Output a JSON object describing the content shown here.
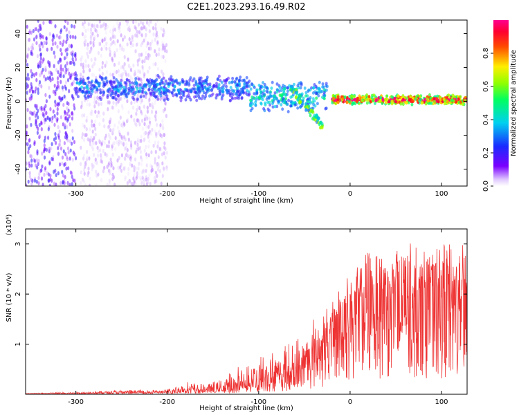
{
  "title": "C2E1.2023.293.16.49.R02",
  "chart_data": [
    {
      "type": "heatmap",
      "xlabel": "Height of straight line (km)",
      "ylabel": "Frequency (Hz)",
      "xlim": [
        -355,
        128
      ],
      "ylim": [
        -50,
        48
      ],
      "x_ticks": [
        -300,
        -200,
        -100,
        0,
        100
      ],
      "y_ticks": [
        -40,
        -20,
        0,
        20,
        40
      ],
      "colorbar": {
        "label": "Normalized spectral amplitude",
        "range": [
          0,
          1
        ],
        "ticks": [
          0.0,
          0.2,
          0.4,
          0.6,
          0.8
        ],
        "colormap": "rainbow (white-violet-blue-cyan-green-yellow-red-magenta)"
      },
      "features": [
        {
          "x_range": [
            -355,
            -300
          ],
          "frequency_range": [
            -50,
            48
          ],
          "amplitude": 0.15,
          "description": "broadband noise"
        },
        {
          "x_range": [
            -295,
            -200
          ],
          "frequency_range": [
            -50,
            48
          ],
          "amplitude": 0.05,
          "description": "faint broadband noise"
        },
        {
          "x_range": [
            -300,
            -110
          ],
          "center_frequency": 8,
          "width": 8,
          "amplitude": 0.3
        },
        {
          "x_range": [
            -110,
            -25
          ],
          "center_frequency": 3,
          "width": 10,
          "amplitude": 0.4
        },
        {
          "x_range": [
            -65,
            -30
          ],
          "frequency_start": 8,
          "frequency_end": -15,
          "amplitude": 0.5,
          "description": "descending streak"
        },
        {
          "x_range": [
            -20,
            128
          ],
          "center_frequency": 1,
          "width": 3,
          "amplitude": 0.85
        }
      ]
    },
    {
      "type": "line",
      "xlabel": "Height of straight line (km)",
      "ylabel": "SNR (10 * v/v)",
      "scale_label": "(x10⁴)",
      "xlim": [
        -355,
        128
      ],
      "ylim": [
        0,
        3.3
      ],
      "x_ticks": [
        -300,
        -200,
        -100,
        0,
        100
      ],
      "y_ticks": [
        1,
        2,
        3
      ],
      "color": "#ee3333",
      "series": [
        {
          "x": [
            -355,
            -300,
            -250,
            -200,
            -180,
            -160,
            -140,
            -120,
            -100,
            -80,
            -60,
            -40,
            -20,
            -10,
            0,
            10,
            20,
            40,
            60,
            80,
            100,
            120,
            128
          ],
          "y": [
            0.01,
            0.02,
            0.04,
            0.04,
            0.1,
            0.09,
            0.1,
            0.15,
            0.3,
            0.35,
            0.5,
            0.8,
            1.2,
            1.55,
            1.7,
            1.9,
            2.05,
            2.1,
            2.1,
            2.05,
            2.1,
            2.0,
            2.0
          ],
          "peak_envelope": [
            0.02,
            0.05,
            0.08,
            0.1,
            0.25,
            0.2,
            0.3,
            0.6,
            0.8,
            0.9,
            1.1,
            1.5,
            1.9,
            2.2,
            2.4,
            2.6,
            2.9,
            3.0,
            3.15,
            2.9,
            3.0,
            3.2,
            3.0
          ]
        }
      ]
    }
  ]
}
